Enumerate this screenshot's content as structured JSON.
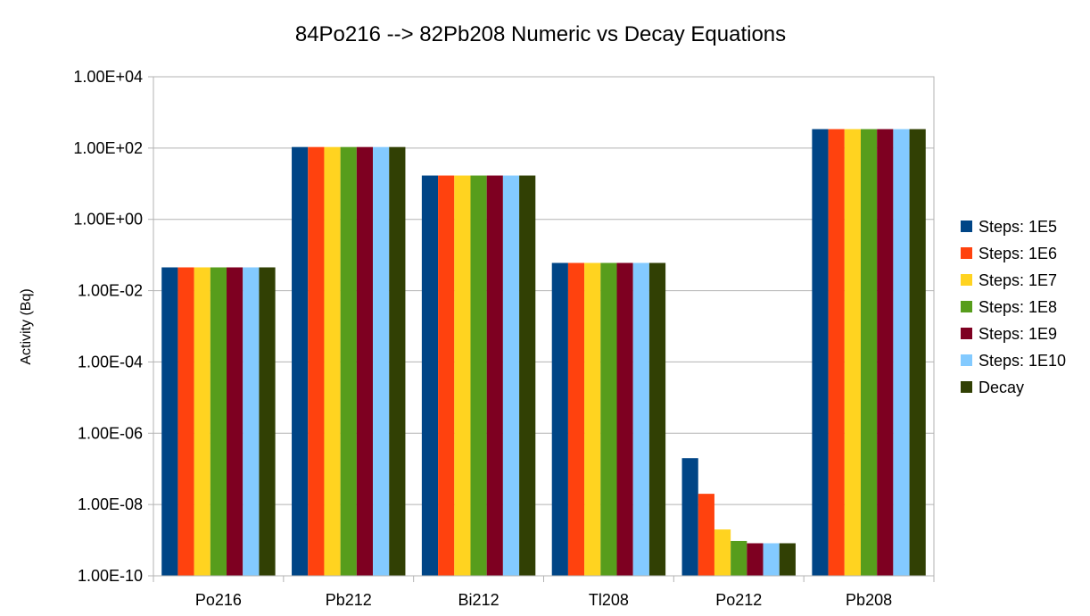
{
  "chart_data": {
    "type": "bar",
    "title": "84Po216 --> 82Pb208 Numeric vs Decay Equations",
    "xlabel": "",
    "ylabel": "Activity (Bq)",
    "yscale": "log",
    "ylim": [
      1e-10,
      10000.0
    ],
    "ytick_labels": [
      "1.00E+04",
      "1.00E+02",
      "1.00E+00",
      "1.00E-02",
      "1.00E-04",
      "1.00E-06",
      "1.00E-08",
      "1.00E-10"
    ],
    "ytick_values": [
      10000.0,
      100.0,
      1,
      0.01,
      0.0001,
      1e-06,
      1e-08,
      1e-10
    ],
    "grid": true,
    "legend_position": "right",
    "categories": [
      "Po216",
      "Pb212",
      "Bi212",
      "Tl208",
      "Po212",
      "Pb208"
    ],
    "series": [
      {
        "name": "Steps: 1E5",
        "color": "#004586",
        "values": [
          0.045,
          107,
          17,
          0.06,
          2e-07,
          340
        ]
      },
      {
        "name": "Steps: 1E6",
        "color": "#ff420e",
        "values": [
          0.045,
          107,
          17,
          0.06,
          2e-08,
          340
        ]
      },
      {
        "name": "Steps: 1E7",
        "color": "#ffd320",
        "values": [
          0.045,
          107,
          17,
          0.06,
          2e-09,
          340
        ]
      },
      {
        "name": "Steps: 1E8",
        "color": "#579d1c",
        "values": [
          0.045,
          107,
          17,
          0.06,
          9.5e-10,
          340
        ]
      },
      {
        "name": "Steps: 1E9",
        "color": "#7e0021",
        "values": [
          0.045,
          107,
          17,
          0.06,
          8.2e-10,
          340
        ]
      },
      {
        "name": "Steps: 1E10",
        "color": "#83caff",
        "values": [
          0.045,
          107,
          17,
          0.06,
          8.2e-10,
          340
        ]
      },
      {
        "name": "Decay",
        "color": "#314004",
        "values": [
          0.045,
          107,
          17,
          0.06,
          8.2e-10,
          340
        ]
      }
    ]
  }
}
